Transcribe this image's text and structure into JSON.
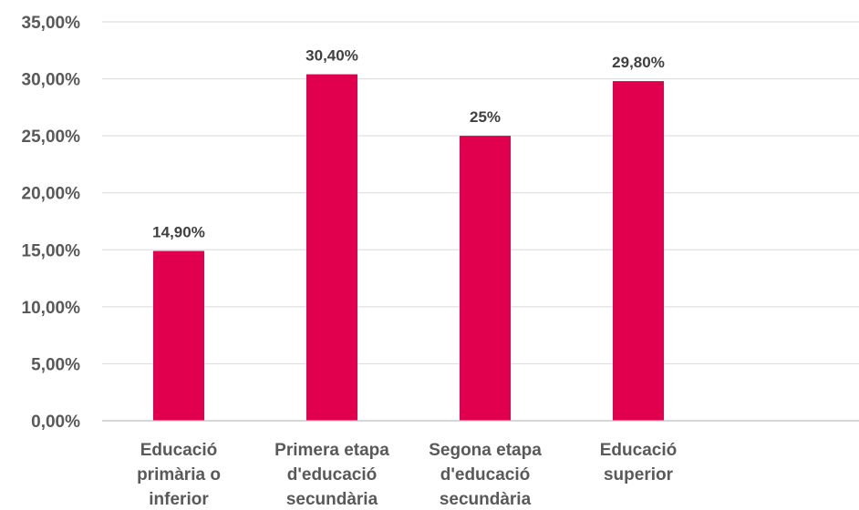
{
  "chart_data": {
    "type": "bar",
    "categories": [
      [
        "Educació",
        "primària o",
        "inferior"
      ],
      [
        "Primera etapa",
        "d'educació",
        "secundària"
      ],
      [
        "Segona etapa",
        "d'educació",
        "secundària"
      ],
      [
        "Educació",
        "superior"
      ]
    ],
    "values": [
      14.9,
      30.4,
      25,
      29.8
    ],
    "data_labels": [
      "14,90%",
      "30,40%",
      "25%",
      "29,80%"
    ],
    "y_ticks": [
      "0,00%",
      "5,00%",
      "10,00%",
      "15,00%",
      "20,00%",
      "25,00%",
      "30,00%",
      "35,00%"
    ],
    "ylim": [
      0,
      35
    ],
    "grid": true,
    "legend": "none",
    "bar_color": "#e0004d"
  }
}
